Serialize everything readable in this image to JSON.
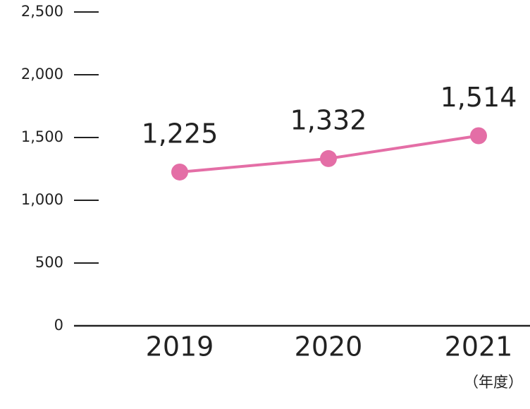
{
  "chart_data": {
    "type": "line",
    "categories": [
      "2019",
      "2020",
      "2021"
    ],
    "values": [
      1225,
      1332,
      1514
    ],
    "value_labels": [
      "1,225",
      "1,332",
      "1,514"
    ],
    "color": "#e46ea6",
    "x_label": "（年度）",
    "ylim": [
      0,
      2500
    ],
    "yticks": [
      0,
      500,
      {
        "value": 1000,
        "label": "1,000"
      },
      {
        "value": 1500,
        "label": "1,500"
      },
      {
        "value": 2000,
        "label": "2,000"
      },
      {
        "value": 2500,
        "label": "2,500"
      }
    ]
  }
}
